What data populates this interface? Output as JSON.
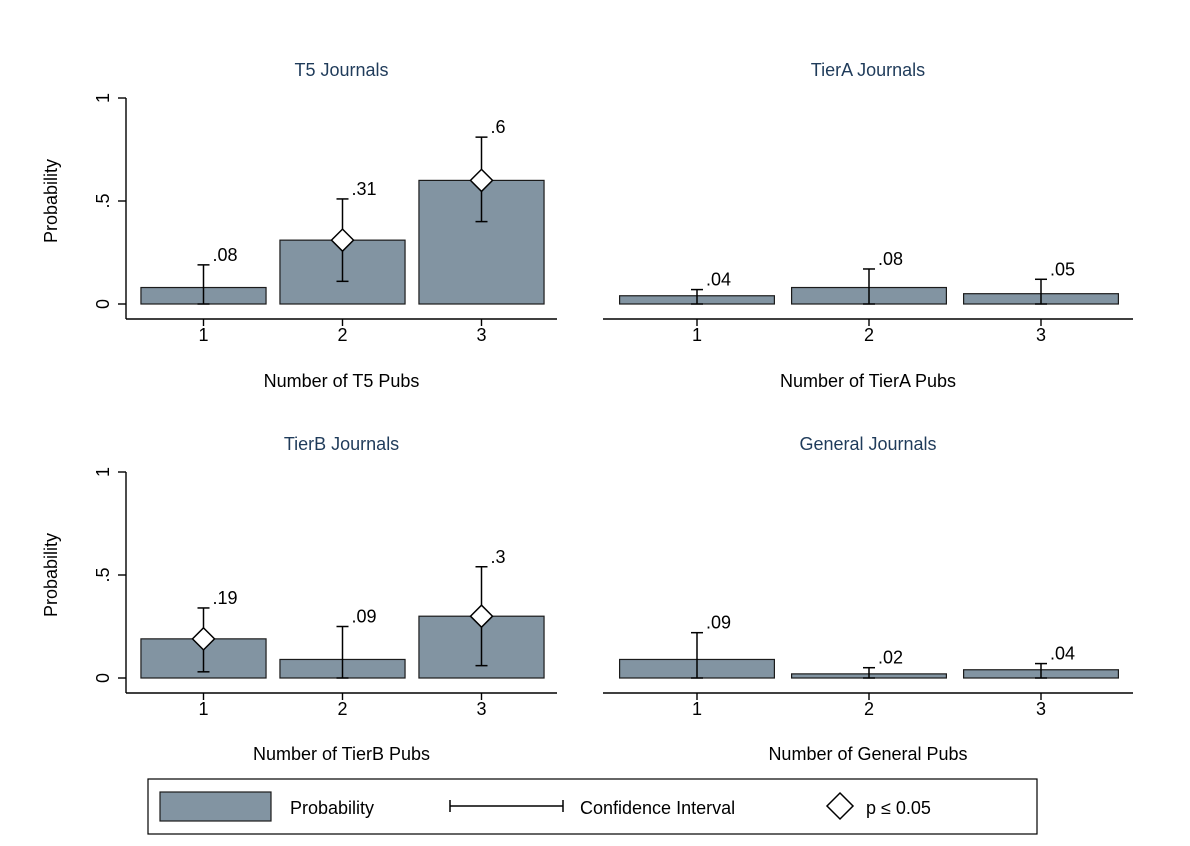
{
  "chart_data": [
    {
      "type": "bar",
      "title": "T5 Journals",
      "xlabel": "Number of T5 Pubs",
      "ylabel": "Probability",
      "categories": [
        "1",
        "2",
        "3"
      ],
      "values": [
        0.08,
        0.31,
        0.6
      ],
      "value_labels": [
        ".08",
        ".31",
        ".6"
      ],
      "ci": [
        [
          0.0,
          0.19
        ],
        [
          0.11,
          0.51
        ],
        [
          0.4,
          0.81
        ]
      ],
      "significant": [
        false,
        true,
        true
      ],
      "ylim": [
        0,
        1
      ],
      "yticks": [
        0,
        0.5,
        1
      ],
      "ytick_labels": [
        "0",
        ".5",
        "1"
      ]
    },
    {
      "type": "bar",
      "title": "TierA Journals",
      "xlabel": "Number of TierA Pubs",
      "ylabel": "",
      "categories": [
        "1",
        "2",
        "3"
      ],
      "values": [
        0.04,
        0.08,
        0.05
      ],
      "value_labels": [
        ".04",
        ".08",
        ".05"
      ],
      "ci": [
        [
          0.0,
          0.07
        ],
        [
          0.0,
          0.17
        ],
        [
          0.0,
          0.12
        ]
      ],
      "significant": [
        false,
        false,
        false
      ],
      "ylim": [
        0,
        1
      ],
      "yticks": [
        0,
        0.5,
        1
      ],
      "ytick_labels": [
        "",
        "",
        ""
      ]
    },
    {
      "type": "bar",
      "title": "TierB Journals",
      "xlabel": "Number of TierB Pubs",
      "ylabel": "Probability",
      "categories": [
        "1",
        "2",
        "3"
      ],
      "values": [
        0.19,
        0.09,
        0.3
      ],
      "value_labels": [
        ".19",
        ".09",
        ".3"
      ],
      "ci": [
        [
          0.03,
          0.34
        ],
        [
          0.0,
          0.25
        ],
        [
          0.06,
          0.54
        ]
      ],
      "significant": [
        true,
        false,
        true
      ],
      "ylim": [
        0,
        1
      ],
      "yticks": [
        0,
        0.5,
        1
      ],
      "ytick_labels": [
        "0",
        ".5",
        "1"
      ]
    },
    {
      "type": "bar",
      "title": "General Journals",
      "xlabel": "Number of General Pubs",
      "ylabel": "",
      "categories": [
        "1",
        "2",
        "3"
      ],
      "values": [
        0.09,
        0.02,
        0.04
      ],
      "value_labels": [
        ".09",
        ".02",
        ".04"
      ],
      "ci": [
        [
          0.0,
          0.22
        ],
        [
          0.0,
          0.05
        ],
        [
          0.0,
          0.07
        ]
      ],
      "significant": [
        false,
        false,
        false
      ],
      "ylim": [
        0,
        1
      ],
      "yticks": [
        0,
        0.5,
        1
      ],
      "ytick_labels": [
        "",
        "",
        ""
      ]
    }
  ],
  "legend": {
    "placement": "bottom",
    "items": [
      {
        "label": "Probability",
        "icon": "bar-swatch"
      },
      {
        "label": "Confidence Interval",
        "icon": "ci-line"
      },
      {
        "label": "p  ≤ 0.05",
        "icon": "diamond"
      }
    ]
  },
  "colors": {
    "bar_fill": "#8294a2",
    "bar_edge": "#1b1b1b",
    "title_color": "#1f3b5a"
  }
}
